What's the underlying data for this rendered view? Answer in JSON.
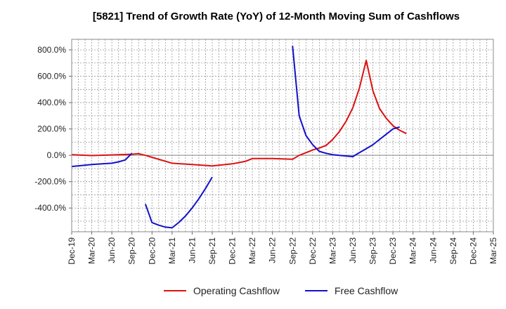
{
  "chart_data": {
    "type": "line",
    "title": "[5821]  Trend of Growth Rate (YoY) of 12-Month Moving Sum of Cashflows",
    "xlabel": "",
    "ylabel": "",
    "ylim": [
      -580,
      880
    ],
    "yticks": [
      800,
      600,
      400,
      200,
      0,
      -200,
      -400
    ],
    "ytick_labels": [
      "800.0%",
      "600.0%",
      "400.0%",
      "200.0%",
      "0.0%",
      "-200.0%",
      "-400.0%"
    ],
    "x_categories": [
      "Dec-19",
      "Mar-20",
      "Jun-20",
      "Sep-20",
      "Dec-20",
      "Mar-21",
      "Jun-21",
      "Sep-21",
      "Dec-21",
      "Mar-22",
      "Jun-22",
      "Sep-22",
      "Dec-22",
      "Mar-23",
      "Jun-23",
      "Sep-23",
      "Dec-23",
      "Mar-24",
      "Jun-24",
      "Sep-24",
      "Dec-24",
      "Mar-25"
    ],
    "grid": true,
    "legend_position": "bottom",
    "series": [
      {
        "name": "Operating Cashflow",
        "color": "#dd1111",
        "points": [
          [
            0,
            5
          ],
          [
            1,
            -2
          ],
          [
            2,
            3
          ],
          [
            3,
            8
          ],
          [
            3.33,
            12
          ],
          [
            3.67,
            0
          ],
          [
            4,
            -15
          ],
          [
            5,
            -60
          ],
          [
            6,
            -70
          ],
          [
            7,
            -80
          ],
          [
            8,
            -65
          ],
          [
            8.67,
            -45
          ],
          [
            9,
            -25
          ],
          [
            10,
            -25
          ],
          [
            11,
            -30
          ],
          [
            11.33,
            0
          ],
          [
            11.67,
            20
          ],
          [
            12,
            40
          ],
          [
            12.33,
            55
          ],
          [
            12.67,
            75
          ],
          [
            13,
            120
          ],
          [
            13.33,
            180
          ],
          [
            13.67,
            260
          ],
          [
            14,
            360
          ],
          [
            14.33,
            510
          ],
          [
            14.67,
            720
          ],
          [
            15,
            490
          ],
          [
            15.33,
            355
          ],
          [
            15.67,
            280
          ],
          [
            16,
            225
          ],
          [
            16.33,
            190
          ],
          [
            16.67,
            165
          ]
        ]
      },
      {
        "name": "Free Cashflow",
        "color": "#1111cc",
        "segments": [
          [
            [
              0,
              -85
            ],
            [
              1,
              -70
            ],
            [
              2,
              -60
            ],
            [
              2.33,
              -50
            ],
            [
              2.67,
              -35
            ],
            [
              3,
              15
            ]
          ],
          [
            [
              3.67,
              -370
            ],
            [
              4,
              -510
            ],
            [
              4.33,
              -530
            ],
            [
              4.67,
              -545
            ],
            [
              5,
              -550
            ],
            [
              5.33,
              -510
            ],
            [
              5.67,
              -460
            ],
            [
              6,
              -400
            ],
            [
              6.33,
              -330
            ],
            [
              6.67,
              -250
            ],
            [
              7,
              -165
            ]
          ],
          [
            [
              11,
              830
            ],
            [
              11.33,
              300
            ],
            [
              11.67,
              150
            ],
            [
              12,
              80
            ],
            [
              12.33,
              30
            ],
            [
              12.67,
              15
            ],
            [
              13,
              5
            ],
            [
              13.33,
              0
            ],
            [
              13.67,
              -5
            ],
            [
              14,
              -10
            ],
            [
              14.33,
              20
            ],
            [
              14.67,
              50
            ],
            [
              15,
              80
            ],
            [
              15.33,
              120
            ],
            [
              15.67,
              160
            ],
            [
              16,
              200
            ],
            [
              16.33,
              215
            ]
          ]
        ]
      }
    ]
  }
}
